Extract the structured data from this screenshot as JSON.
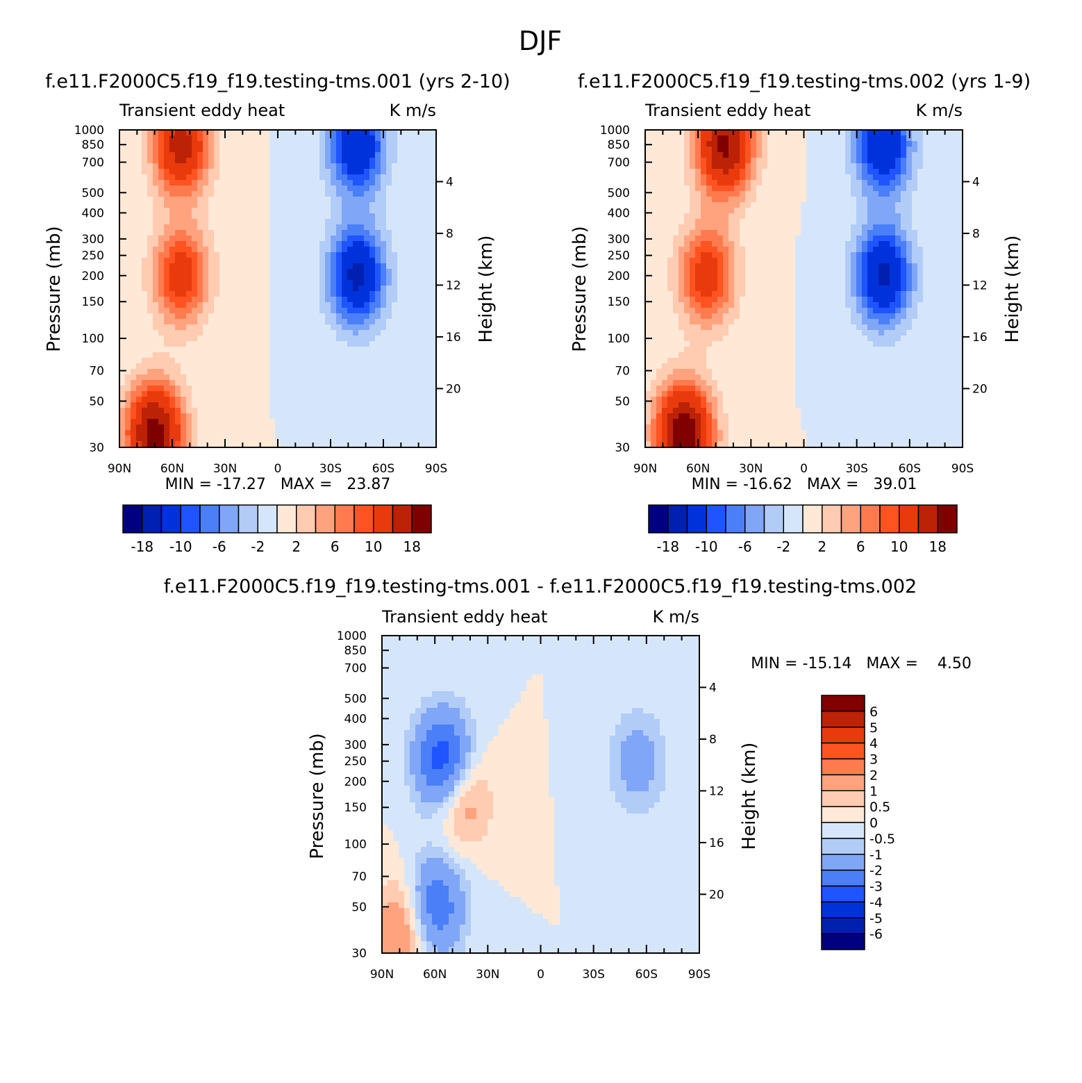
{
  "figure_title": "DJF",
  "shared": {
    "variable": "Transient eddy heat",
    "units": "K m/s",
    "ylabel": "Pressure (mb)",
    "ylabel_right": "Height (km)",
    "pressure_ticks": [
      "30",
      "50",
      "70",
      "100",
      "150",
      "200",
      "250",
      "300",
      "400",
      "500",
      "700",
      "850",
      "1000"
    ],
    "height_ticks": [
      "20",
      "16",
      "12",
      "8",
      "4"
    ],
    "lat_ticks": [
      "90N",
      "60N",
      "30N",
      "0",
      "30S",
      "60S",
      "90S"
    ]
  },
  "panels": [
    {
      "title": "f.e11.F2000C5.f19_f19.testing-tms.001 (yrs 2-10)",
      "min_max": "MIN = -17.27   MAX =   23.87"
    },
    {
      "title": "f.e11.F2000C5.f19_f19.testing-tms.002 (yrs 1-9)",
      "min_max": "MIN = -16.62   MAX =   39.01"
    },
    {
      "title": "f.e11.F2000C5.f19_f19.testing-tms.001 - f.e11.F2000C5.f19_f19.testing-tms.002",
      "min_max": "MIN = -15.14   MAX =    4.50"
    }
  ],
  "colorbar_top": {
    "labels": [
      "-18",
      "-10",
      "-6",
      "-2",
      "2",
      "6",
      "10",
      "18"
    ],
    "colors": [
      "#000080",
      "#0020b0",
      "#0032dc",
      "#1e55ff",
      "#4a7ff7",
      "#80a6f7",
      "#b2ccf8",
      "#d6e6fa",
      "#ffe8d6",
      "#ffcbb1",
      "#ffa37f",
      "#ff7b4f",
      "#ff5321",
      "#e83a0c",
      "#bb2206",
      "#800000"
    ]
  },
  "colorbar_diff": {
    "labels": [
      "6",
      "5",
      "4",
      "3",
      "2",
      "1",
      "0.5",
      "0",
      "-0.5",
      "-1",
      "-2",
      "-3",
      "-4",
      "-5",
      "-6"
    ],
    "colors": [
      "#800000",
      "#bb2206",
      "#e83a0c",
      "#ff5321",
      "#ff7b4f",
      "#ffa37f",
      "#ffcbb1",
      "#ffe8d6",
      "#d6e6fa",
      "#b2ccf8",
      "#80a6f7",
      "#4a7ff7",
      "#1e55ff",
      "#0032dc",
      "#0020b0",
      "#000080"
    ]
  },
  "chart_data": [
    {
      "type": "heatmap",
      "title": "f.e11.F2000C5.f19_f19.testing-tms.001 (yrs 2-10)",
      "x": "latitude",
      "xlim": [
        "90N",
        "90S"
      ],
      "y": "pressure (mb)",
      "ylim": [
        1000,
        30
      ],
      "log_y": true,
      "min": -17.27,
      "max": 23.87,
      "levels": [
        -18,
        -14,
        -10,
        -8,
        -6,
        -4,
        -2,
        0,
        2,
        4,
        6,
        8,
        10,
        14,
        18
      ],
      "features": [
        {
          "lat": 70,
          "p": 35,
          "value": 20
        },
        {
          "lat": 55,
          "p": 200,
          "value": 12
        },
        {
          "lat": 55,
          "p": 850,
          "value": 16
        },
        {
          "lat": -45,
          "p": 200,
          "value": -15
        },
        {
          "lat": -45,
          "p": 850,
          "value": -14
        }
      ]
    },
    {
      "type": "heatmap",
      "title": "f.e11.F2000C5.f19_f19.testing-tms.002 (yrs 1-9)",
      "x": "latitude",
      "xlim": [
        "90N",
        "90S"
      ],
      "y": "pressure (mb)",
      "ylim": [
        1000,
        30
      ],
      "log_y": true,
      "min": -16.62,
      "max": 39.01,
      "levels": [
        -18,
        -14,
        -10,
        -8,
        -6,
        -4,
        -2,
        0,
        2,
        4,
        6,
        8,
        10,
        14,
        18
      ],
      "features": [
        {
          "lat": 68,
          "p": 35,
          "value": 21
        },
        {
          "lat": 55,
          "p": 200,
          "value": 12
        },
        {
          "lat": 45,
          "p": 850,
          "value": 19
        },
        {
          "lat": -45,
          "p": 200,
          "value": -15
        },
        {
          "lat": -45,
          "p": 850,
          "value": -14
        }
      ]
    },
    {
      "type": "heatmap",
      "title": "f.e11.F2000C5.f19_f19.testing-tms.001 - f.e11.F2000C5.f19_f19.testing-tms.002",
      "x": "latitude",
      "xlim": [
        "90N",
        "90S"
      ],
      "y": "pressure (mb)",
      "ylim": [
        1000,
        30
      ],
      "log_y": true,
      "min": -15.14,
      "max": 4.5,
      "levels": [
        -6,
        -5,
        -4,
        -3,
        -2,
        -1,
        -0.5,
        0,
        0.5,
        1,
        2,
        3,
        4,
        5,
        6
      ],
      "features": [
        {
          "lat": 60,
          "p": 50,
          "value": -3
        },
        {
          "lat": 55,
          "p": 250,
          "value": -4
        },
        {
          "lat": 45,
          "p": 170,
          "value": 2
        },
        {
          "lat": 78,
          "p": 40,
          "value": 2
        },
        {
          "lat": -55,
          "p": 250,
          "value": -1.5
        }
      ]
    }
  ]
}
